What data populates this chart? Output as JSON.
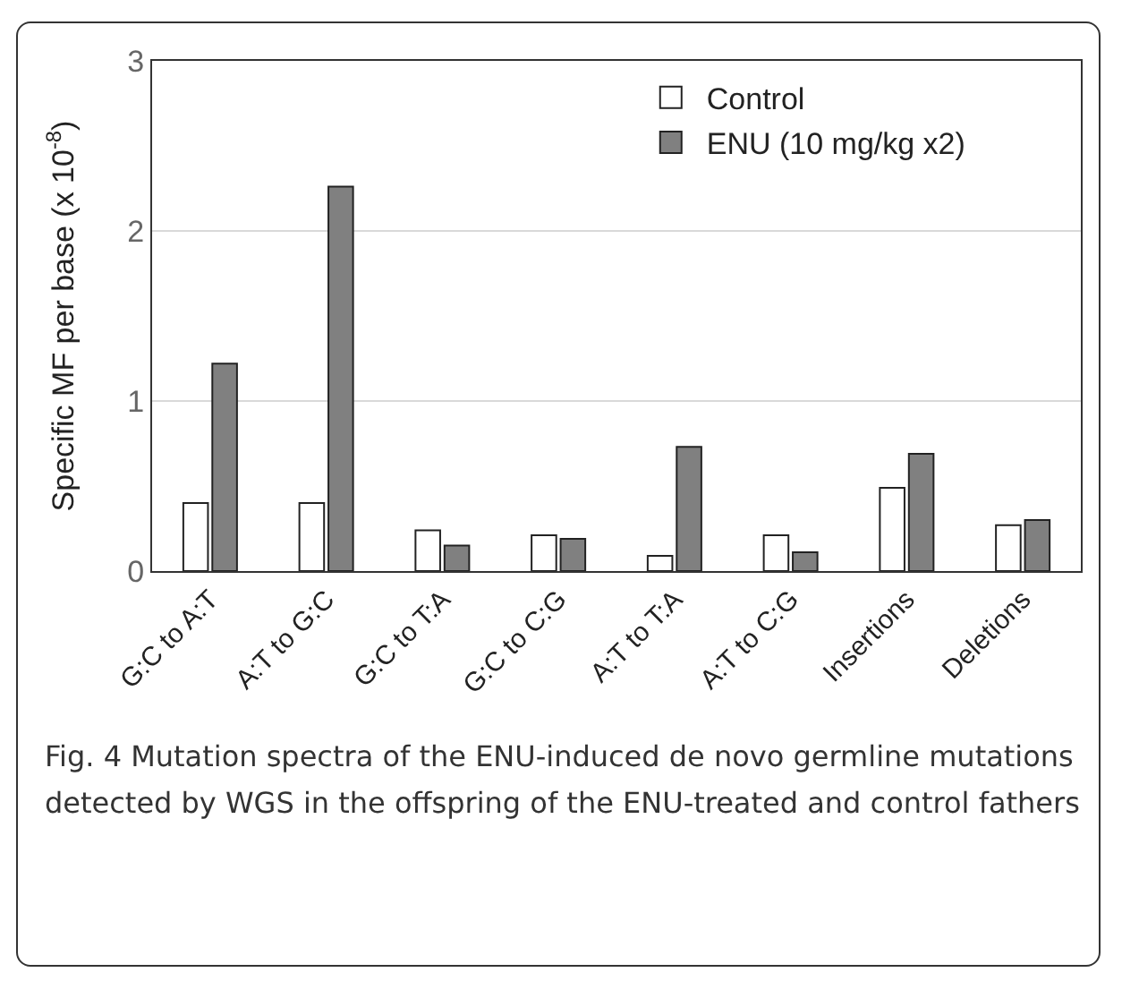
{
  "chart_data": {
    "type": "bar",
    "ylabel": "Specific MF per base (x 10$^{-8}$)",
    "categories": [
      "G:C to A:T",
      "A:T to G:C",
      "G:C to T:A",
      "G:C to C:G",
      "A:T to T:A",
      "A:T to C:G",
      "Insertions",
      "Deletions"
    ],
    "series": [
      {
        "name": "Control",
        "color": "#ffffff",
        "values": [
          0.4,
          0.4,
          0.24,
          0.21,
          0.09,
          0.21,
          0.49,
          0.27
        ]
      },
      {
        "name": "ENU (10 mg/kg x2)",
        "color": "#808080",
        "values": [
          1.22,
          2.26,
          0.15,
          0.19,
          0.73,
          0.11,
          0.69,
          0.3
        ]
      }
    ],
    "ylim": [
      0,
      3
    ],
    "yticks": [
      0,
      1,
      2,
      3
    ],
    "grid": "y",
    "legend": "top right",
    "annotations": [
      "Fig. 4 Mutation spectra of the ENU-induced de novo germline mutations detected by WGS in the offspring of the ENU-treated and control fathers"
    ]
  }
}
